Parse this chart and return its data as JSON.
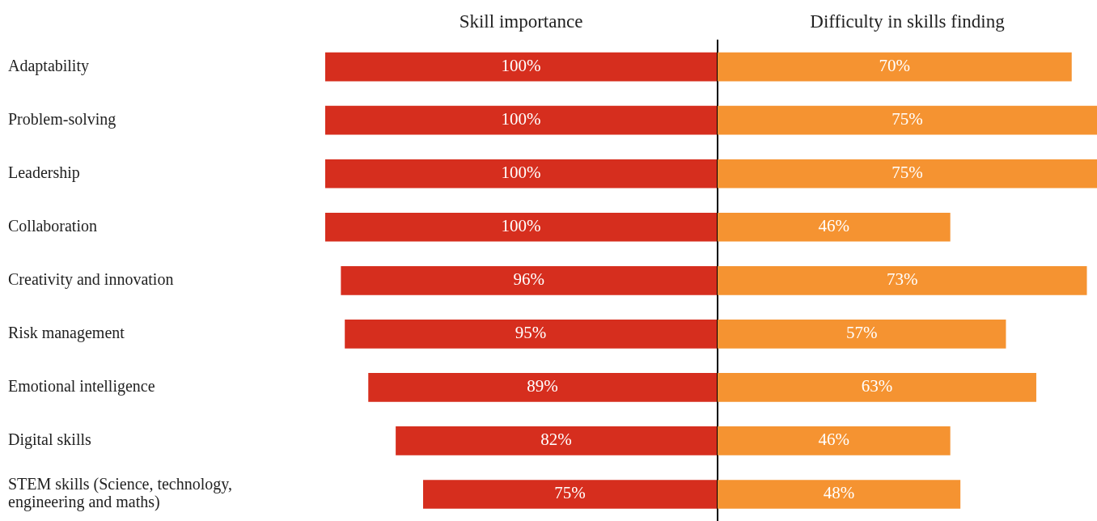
{
  "chart_data": [
    {
      "type": "bar",
      "orientation": "horizontal",
      "title": "Skill importance",
      "categories": [
        "Adaptability",
        "Problem-solving",
        "Leadership",
        "Collaboration",
        "Creativity and innovation",
        "Risk management",
        "Emotional intelligence",
        "Digital skills",
        "STEM skills (Science, technology, engineering and maths)"
      ],
      "values": [
        100,
        100,
        100,
        100,
        96,
        95,
        89,
        82,
        75
      ],
      "value_labels": [
        "100%",
        "100%",
        "100%",
        "100%",
        "96%",
        "95%",
        "89%",
        "82%",
        "75%"
      ],
      "color": "#d62e1e",
      "xlim": [
        100,
        0
      ],
      "tick_labels": "y"
    },
    {
      "type": "bar",
      "orientation": "horizontal",
      "title": "Difficulty in skills finding",
      "categories": [
        null,
        null,
        null,
        null,
        null,
        null,
        null,
        null,
        null
      ],
      "values": [
        70,
        75,
        75,
        46,
        73,
        57,
        63,
        46,
        48
      ],
      "value_labels": [
        "70%",
        "75%",
        "75%",
        "46%",
        "73%",
        "57%",
        "63%",
        "46%",
        "48%"
      ],
      "color": "#f59331",
      "xlim": [
        0,
        75
      ],
      "tick_labels": false
    }
  ]
}
